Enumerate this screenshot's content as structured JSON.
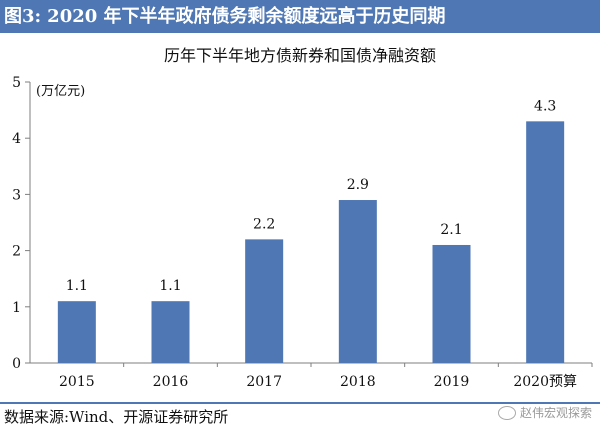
{
  "header": {
    "figure_label": "图3:",
    "title": "2020 年下半年政府债务剩余额度远高于历史同期"
  },
  "chart_data": {
    "type": "bar",
    "title": "历年下半年地方债新券和国债净融资额",
    "ylabel": "(万亿元)",
    "categories": [
      "2015",
      "2016",
      "2017",
      "2018",
      "2019",
      "2020预算"
    ],
    "values": [
      1.1,
      1.1,
      2.2,
      2.9,
      2.1,
      4.3
    ],
    "data_labels": [
      "1.1",
      "1.1",
      "2.2",
      "2.9",
      "2.1",
      "4.3"
    ],
    "ylim": [
      0,
      5
    ],
    "yticks": [
      0,
      1,
      2,
      3,
      4,
      5
    ],
    "grid": false,
    "colors": {
      "bar": "#4f77b3",
      "axis": "#7f7f7f"
    }
  },
  "footer": {
    "source": "数据来源:Wind、开源证券研究所",
    "watermark": "赵伟宏观探索"
  },
  "colors": {
    "title_bar": "#4f77b3",
    "separator": "#4f77b3"
  }
}
